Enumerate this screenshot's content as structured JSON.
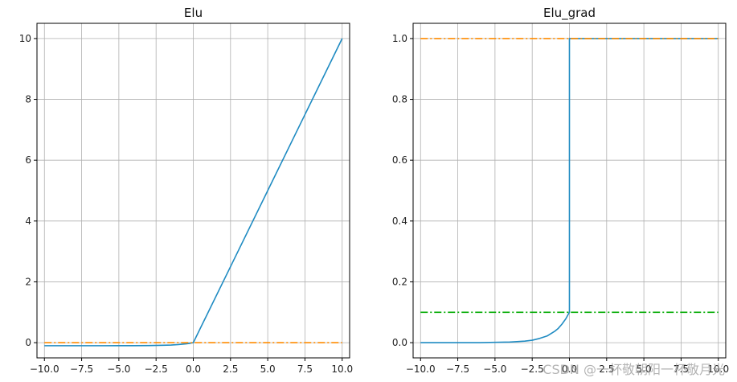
{
  "chart_data": [
    {
      "type": "line",
      "title": "Elu",
      "xlabel": "",
      "ylabel": "",
      "xlim": [
        -10.5,
        10.5
      ],
      "ylim": [
        -0.5,
        10.5
      ],
      "xticks": [
        -10,
        -7.5,
        -5,
        -2.5,
        0,
        2.5,
        5,
        7.5,
        10
      ],
      "xtick_labels": [
        "−10.0",
        "−7.5",
        "−5.0",
        "−2.5",
        "0.0",
        "2.5",
        "5.0",
        "7.5",
        "10.0"
      ],
      "yticks": [
        0,
        2,
        4,
        6,
        8,
        10
      ],
      "ytick_labels": [
        "0",
        "2",
        "4",
        "6",
        "8",
        "10"
      ],
      "grid": true,
      "series": [
        {
          "color": "#1f8bc2",
          "style": "solid",
          "x": [
            -10,
            -8,
            -6,
            -5,
            -4,
            -3,
            -2,
            -1.5,
            -1,
            -0.5,
            -0.25,
            0,
            2.5,
            5,
            7.5,
            10
          ],
          "y": [
            -0.1,
            -0.1,
            -0.1,
            -0.099,
            -0.098,
            -0.095,
            -0.086,
            -0.078,
            -0.063,
            -0.039,
            -0.022,
            0,
            2.5,
            5,
            7.5,
            10
          ]
        },
        {
          "color": "#ff8c00",
          "style": "dashdot",
          "x": [
            -10,
            10
          ],
          "y": [
            0,
            0
          ]
        }
      ]
    },
    {
      "type": "line",
      "title": "Elu_grad",
      "xlabel": "",
      "ylabel": "",
      "xlim": [
        -10.5,
        10.5
      ],
      "ylim": [
        -0.05,
        1.05
      ],
      "xticks": [
        -10,
        -7.5,
        -5,
        -2.5,
        0,
        2.5,
        5,
        7.5,
        10
      ],
      "xtick_labels": [
        "−10.0",
        "−7.5",
        "−5.0",
        "−2.5",
        "0.0",
        "2.5",
        "5.0",
        "7.5",
        "10.0"
      ],
      "yticks": [
        0,
        0.2,
        0.4,
        0.6,
        0.8,
        1.0
      ],
      "ytick_labels": [
        "0.0",
        "0.2",
        "0.4",
        "0.6",
        "0.8",
        "1.0"
      ],
      "grid": true,
      "series": [
        {
          "color": "#1f8bc2",
          "style": "solid",
          "x": [
            -10,
            -8,
            -6,
            -5,
            -4,
            -3,
            -2.5,
            -2,
            -1.5,
            -1,
            -0.75,
            -0.5,
            -0.25,
            0,
            0,
            10
          ],
          "y": [
            0,
            0,
            0,
            0.001,
            0.002,
            0.005,
            0.008,
            0.014,
            0.022,
            0.037,
            0.047,
            0.061,
            0.078,
            0.1,
            1.0,
            1.0
          ]
        },
        {
          "color": "#ff8c00",
          "style": "dashdot",
          "x": [
            -10,
            10
          ],
          "y": [
            1.0,
            1.0
          ]
        },
        {
          "color": "#00aa00",
          "style": "dashdot",
          "x": [
            -10,
            10
          ],
          "y": [
            0.1,
            0.1
          ]
        }
      ]
    }
  ],
  "watermark": "CSDN @一杯敬朝阳一杯敬月光"
}
